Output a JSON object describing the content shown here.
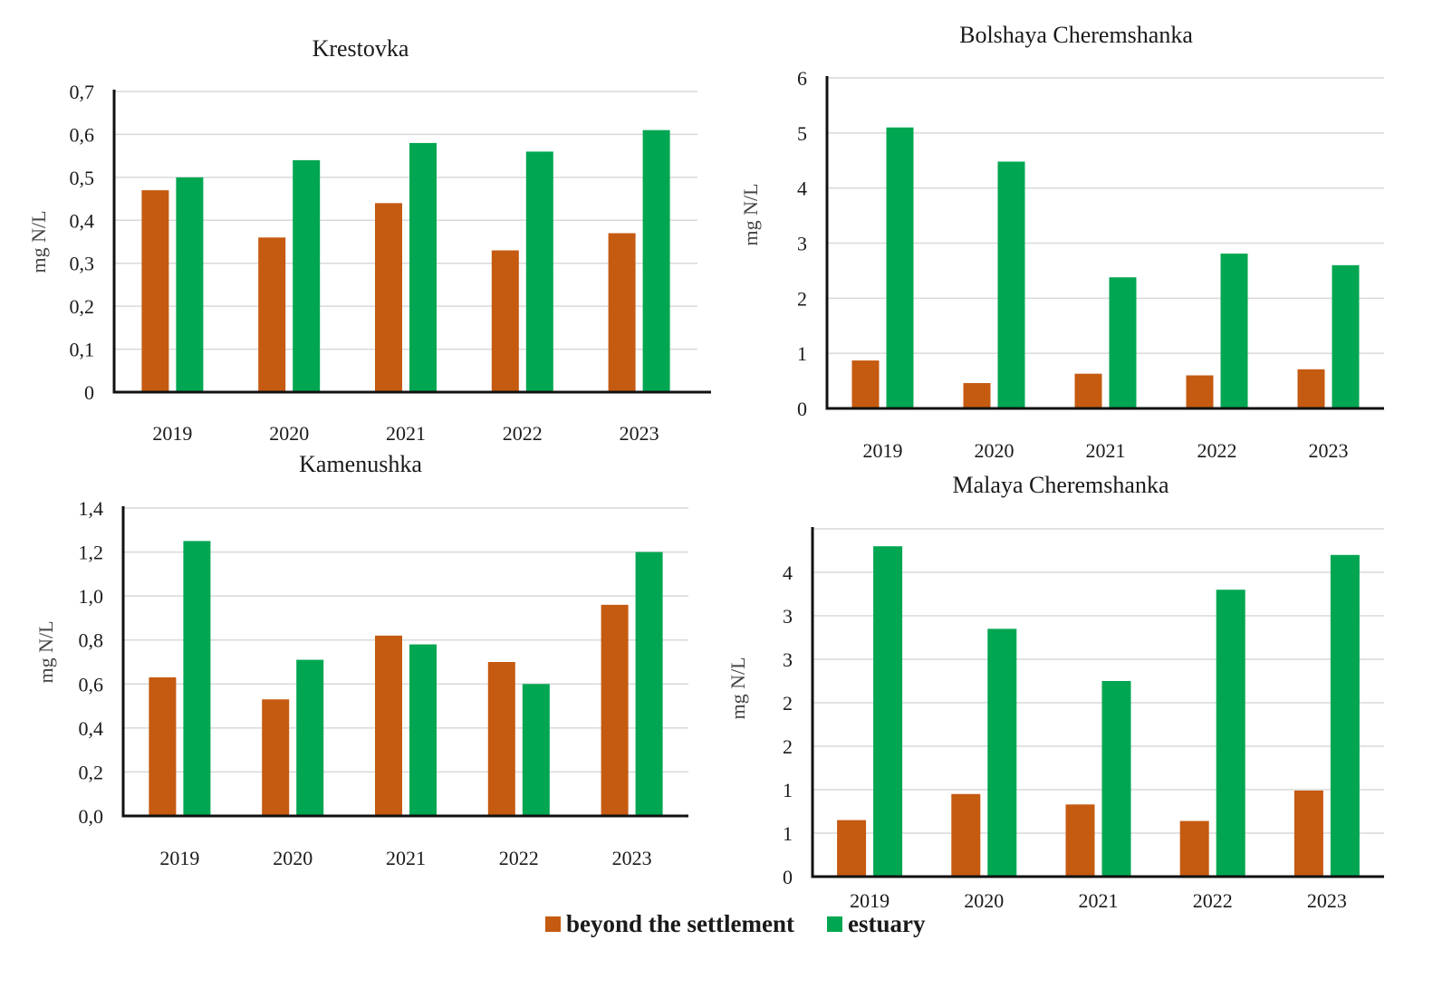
{
  "colors": {
    "beyond": "#c55a11",
    "estuary": "#00a651"
  },
  "legend": [
    {
      "label": "beyond the settlement",
      "color_key": "beyond"
    },
    {
      "label": "estuary",
      "color_key": "estuary"
    }
  ],
  "chart_data": [
    {
      "type": "bar",
      "title": "Krestovka",
      "xlabel": "",
      "ylabel": "mg N/L",
      "categories": [
        "2019",
        "2020",
        "2021",
        "2022",
        "2023"
      ],
      "ylim": [
        0,
        0.7
      ],
      "yticks": [
        0,
        0.1,
        0.2,
        0.3,
        0.4,
        0.5,
        0.6,
        0.7
      ],
      "ytick_labels": [
        "0",
        "0,1",
        "0,2",
        "0,3",
        "0,4",
        "0,5",
        "0,6",
        "0,7"
      ],
      "grid": true,
      "series": [
        {
          "name": "beyond the settlement",
          "values": [
            0.47,
            0.36,
            0.44,
            0.33,
            0.37
          ]
        },
        {
          "name": "estuary",
          "values": [
            0.5,
            0.54,
            0.58,
            0.56,
            0.61
          ]
        }
      ]
    },
    {
      "type": "bar",
      "title": "Bolshaya Cheremshanka",
      "xlabel": "",
      "ylabel": "mg N/L",
      "categories": [
        "2019",
        "2020",
        "2021",
        "2022",
        "2023"
      ],
      "ylim": [
        0,
        6
      ],
      "yticks": [
        0,
        1,
        2,
        3,
        4,
        5,
        6
      ],
      "ytick_labels": [
        "0",
        "1",
        "2",
        "3",
        "4",
        "5",
        "6"
      ],
      "grid": true,
      "series": [
        {
          "name": "beyond the settlement",
          "values": [
            0.87,
            0.46,
            0.63,
            0.6,
            0.71
          ]
        },
        {
          "name": "estuary",
          "values": [
            5.1,
            4.48,
            2.38,
            2.81,
            2.6
          ]
        }
      ]
    },
    {
      "type": "bar",
      "title": "Kamenushka",
      "xlabel": "",
      "ylabel": "mg N/L",
      "categories": [
        "2019",
        "2020",
        "2021",
        "2022",
        "2023"
      ],
      "ylim": [
        0,
        1.4
      ],
      "yticks": [
        0,
        0.2,
        0.4,
        0.6,
        0.8,
        1.0,
        1.2,
        1.4
      ],
      "ytick_labels": [
        "0,0",
        "0,2",
        "0,4",
        "0,6",
        "0,8",
        "1,0",
        "1,2",
        "1,4"
      ],
      "grid": true,
      "series": [
        {
          "name": "beyond the settlement",
          "values": [
            0.63,
            0.53,
            0.82,
            0.7,
            0.96
          ]
        },
        {
          "name": "estuary",
          "values": [
            1.25,
            0.71,
            0.78,
            0.6,
            1.2
          ]
        }
      ]
    },
    {
      "type": "bar",
      "title": "Malaya Cheremshanka",
      "xlabel": "",
      "ylabel": "mg N/L",
      "categories": [
        "2019",
        "2020",
        "2021",
        "2022",
        "2023"
      ],
      "ylim": [
        0,
        4
      ],
      "yticks": [
        0,
        0.5,
        1,
        1.5,
        2,
        2.5,
        3,
        3.5,
        4
      ],
      "ytick_labels": [
        "0",
        "1",
        "1",
        "2",
        "2",
        "3",
        "3",
        "4",
        ""
      ],
      "grid": true,
      "series": [
        {
          "name": "beyond the settlement",
          "values": [
            0.65,
            0.95,
            0.83,
            0.64,
            0.99
          ]
        },
        {
          "name": "estuary",
          "values": [
            3.8,
            2.85,
            2.25,
            3.3,
            3.7
          ]
        }
      ]
    }
  ]
}
